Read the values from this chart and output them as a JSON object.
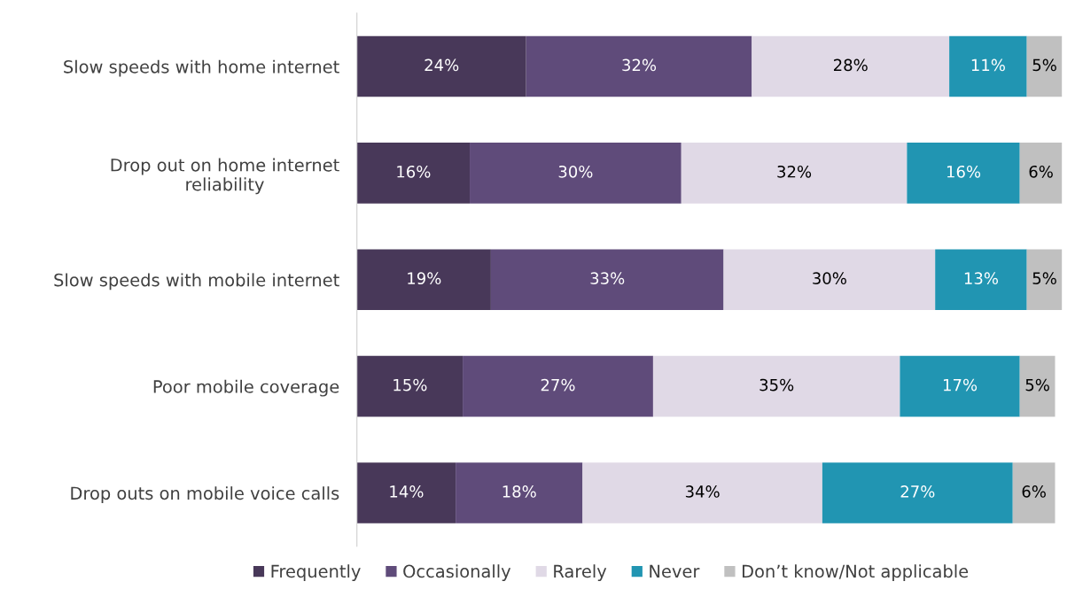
{
  "chart_data": {
    "type": "bar",
    "orientation": "horizontal",
    "stacked": true,
    "legend": "bottom",
    "grid": false,
    "categories": [
      "Slow speeds with home internet",
      "Drop out on home internet reliability",
      "Slow speeds with mobile internet",
      "Poor mobile coverage",
      "Drop outs on mobile voice calls"
    ],
    "series": [
      {
        "name": "Frequently",
        "color": "#483859",
        "values": [
          24,
          16,
          19,
          15,
          14
        ],
        "value_labels": [
          "24%",
          "16%",
          "19%",
          "15%",
          "14%"
        ]
      },
      {
        "name": "Occasionally",
        "color": "#5f4b7a",
        "values": [
          32,
          30,
          33,
          27,
          18
        ],
        "value_labels": [
          "32%",
          "30%",
          "33%",
          "27%",
          "18%"
        ]
      },
      {
        "name": "Rarely",
        "color": "#e0d9e6",
        "values": [
          28,
          32,
          30,
          35,
          34
        ],
        "value_labels": [
          "28%",
          "32%",
          "30%",
          "35%",
          "34%"
        ]
      },
      {
        "name": "Never",
        "color": "#2195b2",
        "values": [
          11,
          16,
          13,
          17,
          27
        ],
        "value_labels": [
          "11%",
          "16%",
          "13%",
          "17%",
          "27%"
        ]
      },
      {
        "name": "Don’t know/Not applicable",
        "color": "#c0c0c0",
        "values": [
          5,
          6,
          5,
          5,
          6
        ],
        "value_labels": [
          "5%",
          "6%",
          "5%",
          "5%",
          "6%"
        ]
      }
    ]
  }
}
